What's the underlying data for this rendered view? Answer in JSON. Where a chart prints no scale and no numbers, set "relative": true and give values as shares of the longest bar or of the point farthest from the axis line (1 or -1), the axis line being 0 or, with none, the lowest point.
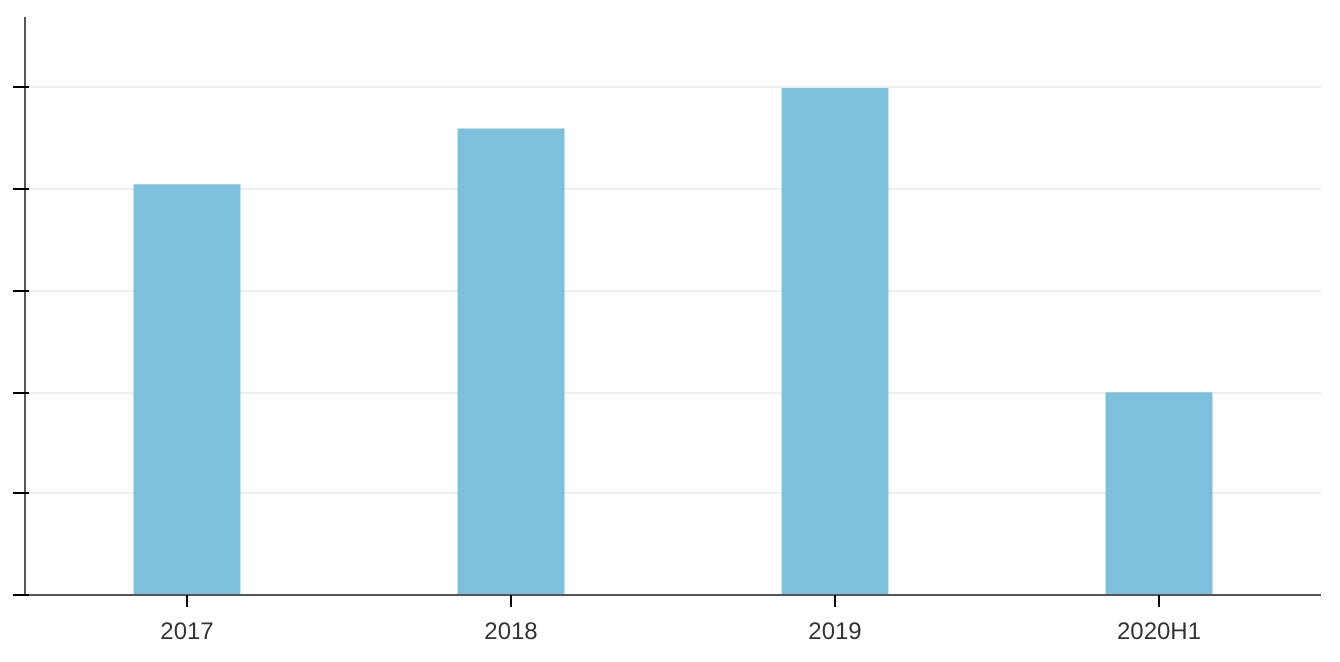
{
  "chart_data": {
    "type": "bar",
    "relative": true,
    "categories": [
      "2017",
      "2018",
      "2019",
      "2020H1"
    ],
    "values": [
      0.81,
      0.92,
      1,
      0.4
    ],
    "color": "#7dc0dc",
    "grid": "y"
  }
}
